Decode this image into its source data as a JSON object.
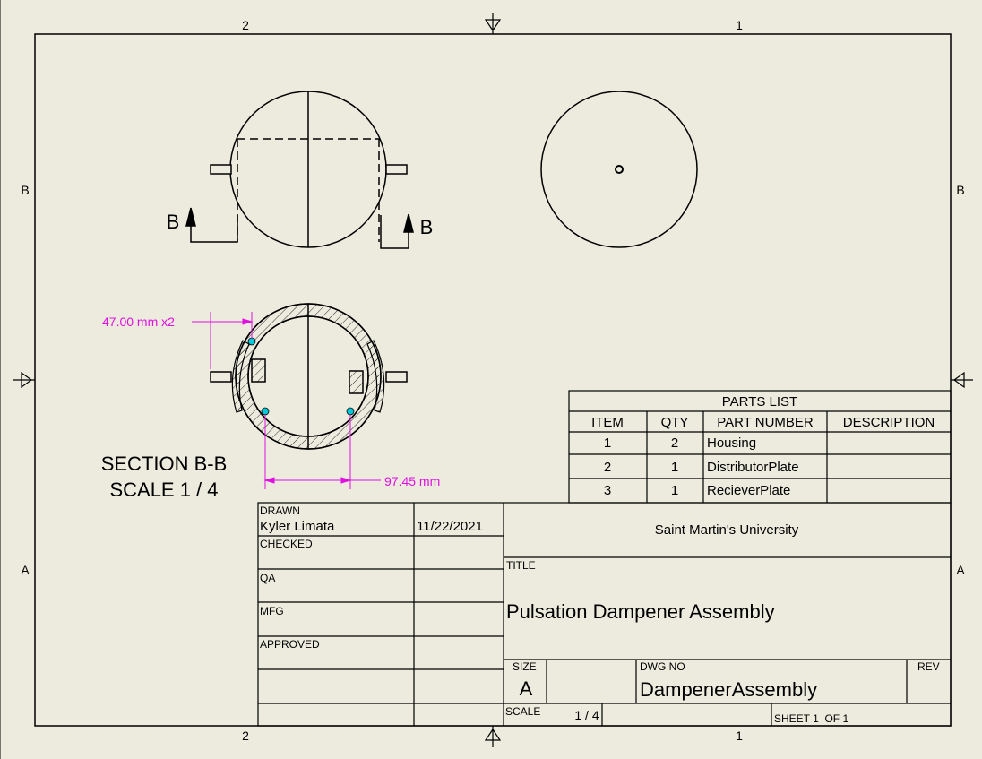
{
  "zones": {
    "top": [
      "2",
      "1"
    ],
    "bottom": [
      "2",
      "1"
    ],
    "left": [
      "B",
      "A"
    ],
    "right": [
      "B",
      "A"
    ]
  },
  "views": {
    "section_mark_left": "B",
    "section_mark_right": "B",
    "section_label": "SECTION B-B",
    "section_scale": "SCALE 1 / 4"
  },
  "dimensions": {
    "dim_1": "47.00 mm x2",
    "dim_2": "97.45 mm"
  },
  "parts_list": {
    "title": "PARTS LIST",
    "headers": [
      "ITEM",
      "QTY",
      "PART NUMBER",
      "DESCRIPTION"
    ],
    "rows": [
      {
        "item": "1",
        "qty": "2",
        "part": "Housing",
        "desc": ""
      },
      {
        "item": "2",
        "qty": "1",
        "part": "DistributorPlate",
        "desc": ""
      },
      {
        "item": "3",
        "qty": "1",
        "part": "RecieverPlate",
        "desc": ""
      }
    ]
  },
  "title_block": {
    "drawn_label": "DRAWN",
    "drawn_name": "Kyler Limata",
    "drawn_date": "11/22/2021",
    "checked_label": "CHECKED",
    "qa_label": "QA",
    "mfg_label": "MFG",
    "approved_label": "APPROVED",
    "company": "Saint Martin's University",
    "title_label": "TITLE",
    "title": "Pulsation Dampener Assembly",
    "size_label": "SIZE",
    "size": "A",
    "dwg_no_label": "DWG NO",
    "dwg_no": "DampenerAssembly",
    "rev_label": "REV",
    "scale_label": "SCALE",
    "scale": "1 / 4",
    "sheet_label": "SHEET 1  OF 1"
  },
  "colors": {
    "dimension": "#e010e0",
    "point": "#00c8d8"
  }
}
